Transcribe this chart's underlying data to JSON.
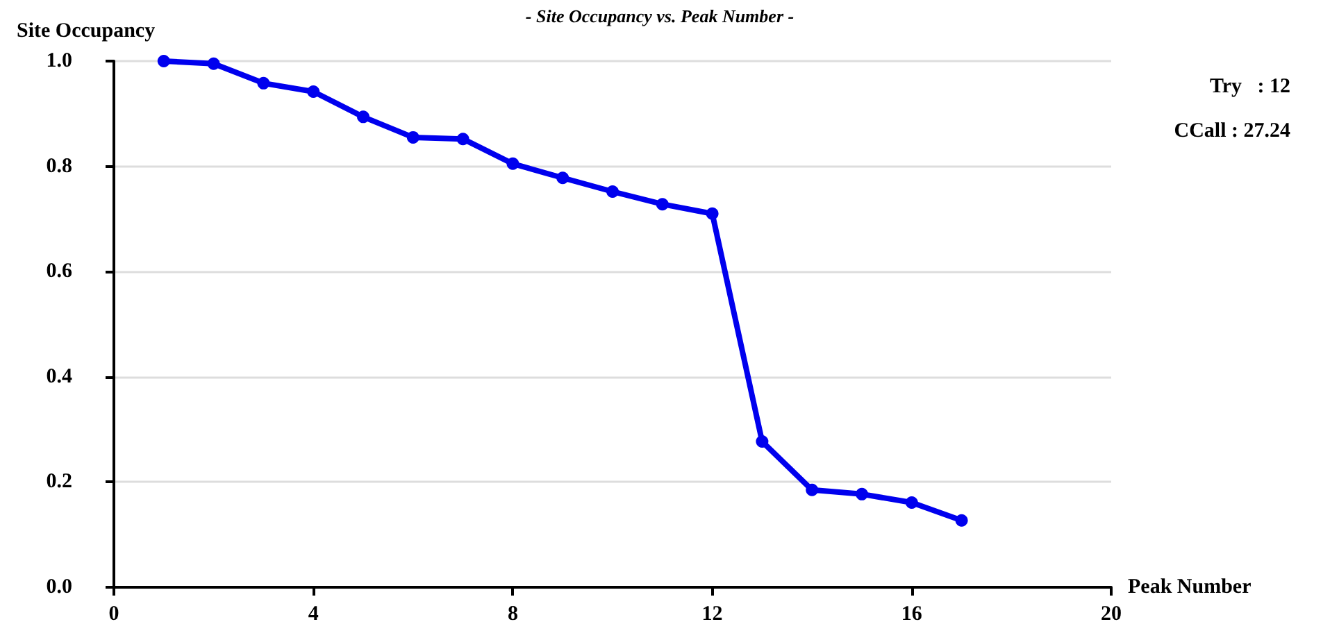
{
  "chart_data": {
    "type": "line",
    "title": "- Site Occupancy vs. Peak Number -",
    "xlabel": "Peak Number",
    "ylabel": "Site Occupancy",
    "x": [
      1,
      2,
      3,
      4,
      5,
      6,
      7,
      8,
      9,
      10,
      11,
      12,
      13,
      14,
      15,
      16,
      17
    ],
    "series": [
      {
        "color": "#0000ee",
        "values": [
          1.0,
          0.995,
          0.958,
          0.942,
          0.894,
          0.855,
          0.852,
          0.805,
          0.778,
          0.752,
          0.728,
          0.71,
          0.277,
          0.185,
          0.177,
          0.161,
          0.127
        ]
      }
    ],
    "xlim": [
      0,
      20
    ],
    "xticks": [
      0,
      4,
      8,
      12,
      16,
      20
    ],
    "ylim": [
      0,
      1
    ],
    "yticks": [
      {
        "value": 0,
        "label": "0.0"
      },
      {
        "value": 0.2,
        "label": "0.2"
      },
      {
        "value": 0.4,
        "label": "0.4"
      },
      {
        "value": 0.6,
        "label": "0.6"
      },
      {
        "value": 0.8,
        "label": "0.8"
      },
      {
        "value": 1,
        "label": "1.0"
      }
    ],
    "grid": "y",
    "marker": "circle",
    "line_style": "solid",
    "annotations": [
      "Try   : 12",
      "CCall : 27.24"
    ]
  }
}
